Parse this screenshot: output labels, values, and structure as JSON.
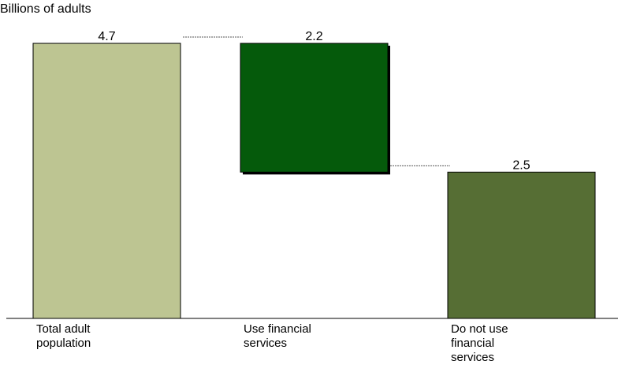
{
  "title": "",
  "subtitle": "Billions of adults",
  "chart_data": {
    "type": "bar",
    "subtype": "waterfall",
    "title": "",
    "ylabel": "Billions of adults",
    "xlabel": "",
    "categories": [
      "Total adult population",
      "Use financial services",
      "Do not use financial services"
    ],
    "values": [
      4.7,
      2.2,
      2.5
    ],
    "value_labels": [
      "4.7",
      "2.2",
      "2.5"
    ],
    "bar_base": [
      0,
      2.5,
      0
    ],
    "colors": [
      "#bdc592",
      "#055a0b",
      "#566e34"
    ],
    "connectors": true,
    "ylim": [
      0,
      4.7
    ],
    "grid": false,
    "legend": "none"
  }
}
